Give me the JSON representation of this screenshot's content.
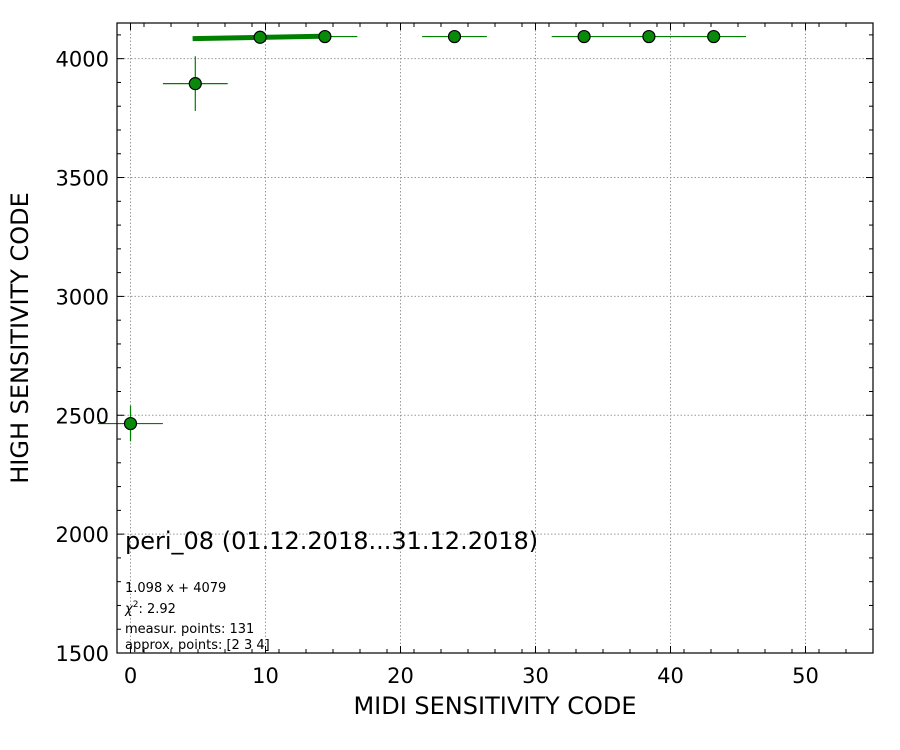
{
  "chart_data": {
    "type": "scatter",
    "xlabel": "MIDI SENSITIVITY CODE",
    "ylabel": "HIGH SENSITIVITY CODE",
    "xlim": [
      -1,
      55
    ],
    "ylim": [
      1500,
      4150
    ],
    "xticks": [
      0,
      10,
      20,
      30,
      40,
      50
    ],
    "yticks": [
      1500,
      2000,
      2500,
      3000,
      3500,
      4000
    ],
    "grid": true,
    "points": [
      {
        "x": 0.0,
        "y": 2465,
        "xerr": 2.4,
        "yerr": 75
      },
      {
        "x": 4.8,
        "y": 3895,
        "xerr": 2.4,
        "yerr": 115
      },
      {
        "x": 9.6,
        "y": 4090,
        "xerr": 0,
        "yerr": 0
      },
      {
        "x": 14.4,
        "y": 4093,
        "xerr": 2.4,
        "yerr": 0
      },
      {
        "x": 24.0,
        "y": 4093,
        "xerr": 2.4,
        "yerr": 0
      },
      {
        "x": 33.6,
        "y": 4093,
        "xerr": 2.4,
        "yerr": 0
      },
      {
        "x": 38.4,
        "y": 4093,
        "xerr": 2.4,
        "yerr": 0
      },
      {
        "x": 43.2,
        "y": 4093,
        "xerr": 2.4,
        "yerr": 0
      }
    ],
    "fit_line": {
      "x": [
        4.6,
        14.6
      ],
      "slope": 1.098,
      "intercept": 4079
    },
    "colors": {
      "marker": "#0a8a0a",
      "errorbar": "#008000",
      "fit": "#008000",
      "grid": "#999999"
    }
  },
  "annotations": {
    "title": "peri_08 (01.12.2018...31.12.2018)",
    "fit_equation": "1.098 x + 4079",
    "chi2_label": "χ",
    "chi2_exp": "2",
    "chi2_value": ": 2.92",
    "measured_points": "measur. points: 131",
    "approx_points": "approx. points: [2 3 4]"
  }
}
